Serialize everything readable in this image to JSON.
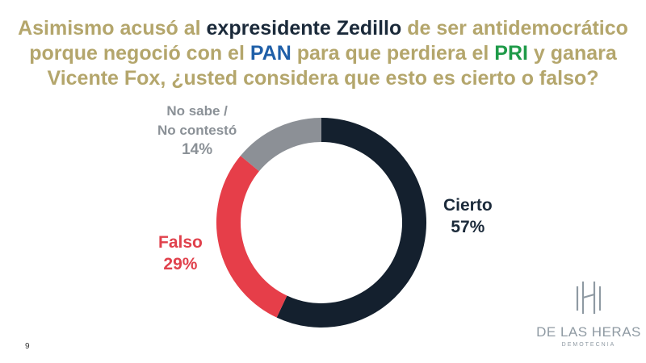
{
  "title": {
    "part1": "Asimismo acusó al ",
    "part2": "expresidente Zedillo",
    "part3": " de ser antidemocrático porque negoció con el ",
    "part4": "PAN",
    "part5": " para que perdiera el ",
    "part6": "PRI",
    "part7": " y ganara Vicente Fox, ¿usted considera que esto es cierto o falso?"
  },
  "chart_data": {
    "type": "pie",
    "variant": "donut",
    "slices": [
      {
        "label": "Cierto",
        "value": 57,
        "display": "57%",
        "color": "#14202e"
      },
      {
        "label": "Falso",
        "value": 29,
        "display": "29%",
        "color": "#e63e49"
      },
      {
        "label_line1": "No sabe /",
        "label_line2": "No contestó",
        "value": 14,
        "display": "14%",
        "color": "#8c9096"
      }
    ]
  },
  "logo": {
    "name": "DE LAS HERAS",
    "subtitle": "DEMOTECNIA"
  },
  "page_number": "9"
}
